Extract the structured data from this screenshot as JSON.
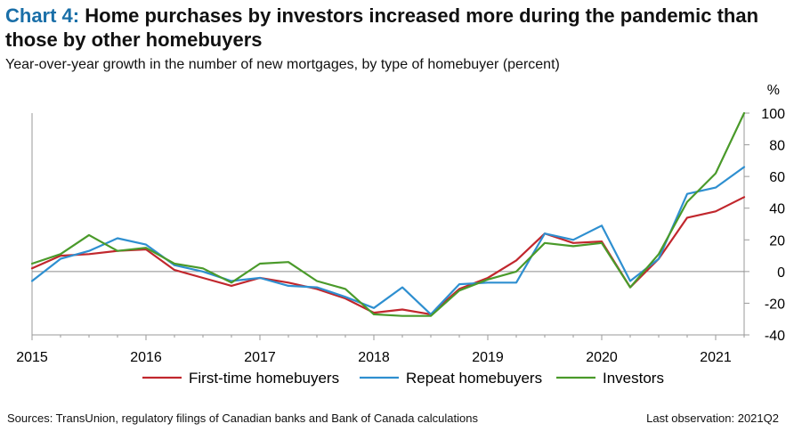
{
  "header": {
    "chart_number": "Chart 4:",
    "title": "Home purchases by investors increased more during the pandemic than those by other homebuyers",
    "subtitle": "Year-over-year  growth in the number of new mortgages, by type of homebuyer (percent)"
  },
  "footer": {
    "sources": "Sources: TransUnion, regulatory filings of Canadian banks and Bank of Canada calculations",
    "last_observation": "Last observation: 2021Q2"
  },
  "chart_data": {
    "type": "line",
    "title": "Home purchases by investors increased more during the pandemic than those by other homebuyers",
    "ylabel": "%",
    "ylim": [
      -40,
      100
    ],
    "yticks": [
      100,
      80,
      60,
      40,
      20,
      0,
      -20,
      -40
    ],
    "x_year_labels": [
      "2015",
      "2016",
      "2017",
      "2018",
      "2019",
      "2020",
      "2021"
    ],
    "x": [
      "2015Q1",
      "2015Q2",
      "2015Q3",
      "2015Q4",
      "2016Q1",
      "2016Q2",
      "2016Q3",
      "2016Q4",
      "2017Q1",
      "2017Q2",
      "2017Q3",
      "2017Q4",
      "2018Q1",
      "2018Q2",
      "2018Q3",
      "2018Q4",
      "2019Q1",
      "2019Q2",
      "2019Q3",
      "2019Q4",
      "2020Q1",
      "2020Q2",
      "2020Q3",
      "2020Q4",
      "2021Q1",
      "2021Q2"
    ],
    "series": [
      {
        "name": "First-time homebuyers",
        "color": "#c1272d",
        "values": [
          2,
          10,
          11,
          13,
          14,
          1,
          -4,
          -9,
          -4,
          -7,
          -11,
          -17,
          -26,
          -24,
          -27,
          -11,
          -4,
          7,
          24,
          18,
          19,
          -10,
          8,
          34,
          38,
          47
        ]
      },
      {
        "name": "Repeat homebuyers",
        "color": "#2e8fd0",
        "values": [
          -6,
          8,
          13,
          21,
          17,
          4,
          0,
          -6,
          -4,
          -9,
          -10,
          -16,
          -23,
          -10,
          -27,
          -8,
          -7,
          -7,
          24,
          20,
          29,
          -6,
          8,
          49,
          53,
          66
        ]
      },
      {
        "name": "Investors",
        "color": "#4a9a2a",
        "values": [
          5,
          11,
          23,
          13,
          15,
          5,
          2,
          -7,
          5,
          6,
          -6,
          -11,
          -27,
          -28,
          -28,
          -12,
          -5,
          0,
          18,
          16,
          18,
          -10,
          11,
          44,
          62,
          100
        ]
      }
    ]
  }
}
